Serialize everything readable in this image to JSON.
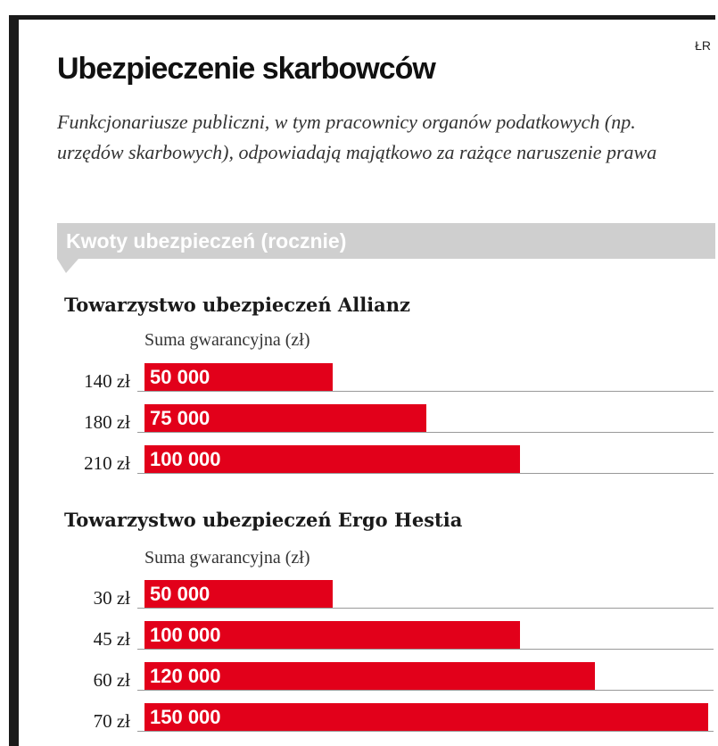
{
  "credit": "ŁR",
  "title": "Ubezpieczenie skarbowców",
  "subtitle": "Funkcjonariusze publiczni, w tym pracownicy organów podatkowych (np. urzędów skarbowych), odpowiadają majątkowo za rażące naruszenie prawa",
  "banner": "Kwoty ubezpieczeń (rocznie)",
  "colors": {
    "bar": "#e2001a",
    "banner": "#cfcfcf",
    "frame": "#1a1a1a"
  },
  "chart_data": [
    {
      "type": "bar",
      "orientation": "horizontal",
      "title": "Towarzystwo ubezpieczeń Allianz",
      "value_label": "Suma gwarancyjna (zł)",
      "categories": [
        "140 zł",
        "180 zł",
        "210 zł"
      ],
      "values": [
        50000,
        75000,
        100000
      ],
      "value_labels": [
        "50 000",
        "75 000",
        "100 000"
      ],
      "xlim": [
        0,
        150000
      ]
    },
    {
      "type": "bar",
      "orientation": "horizontal",
      "title": "Towarzystwo ubezpieczeń Ergo Hestia",
      "value_label": "Suma gwarancyjna (zł)",
      "categories": [
        "30 zł",
        "45 zł",
        "60 zł",
        "70 zł"
      ],
      "values": [
        50000,
        100000,
        120000,
        150000
      ],
      "value_labels": [
        "50 000",
        "100 000",
        "120 000",
        "150 000"
      ],
      "xlim": [
        0,
        150000
      ]
    }
  ]
}
